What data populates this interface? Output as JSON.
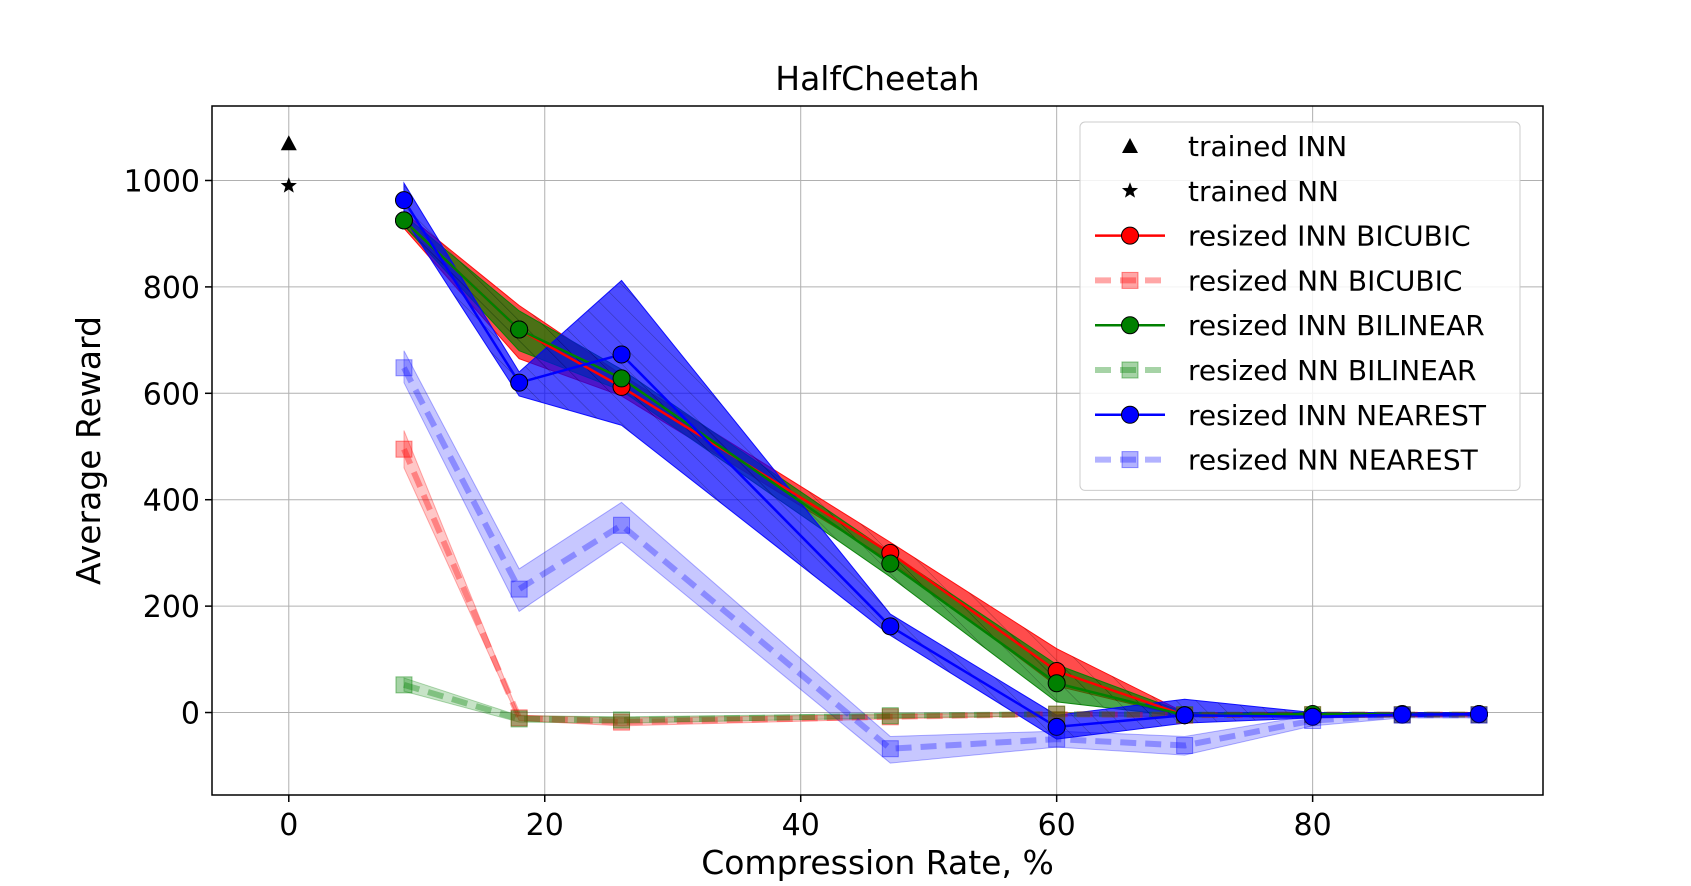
{
  "chart_data": {
    "type": "line",
    "title": "HalfCheetah",
    "xlabel": "Compression Rate, %",
    "ylabel": "Average Reward",
    "xlim": [
      -6,
      98
    ],
    "ylim": [
      -155,
      1140
    ],
    "xticks": [
      0,
      20,
      40,
      60,
      80
    ],
    "yticks": [
      0,
      200,
      400,
      600,
      800,
      1000
    ],
    "xtick_labels": [
      "0",
      "20",
      "40",
      "60",
      "80"
    ],
    "ytick_labels": [
      "0",
      "200",
      "400",
      "600",
      "800",
      "1000"
    ],
    "grid": true,
    "legend_position": "top-right",
    "x": [
      9,
      18,
      26,
      47,
      60,
      70,
      80,
      87,
      93
    ],
    "reference_points": [
      {
        "name": "trained INN",
        "marker": "triangle",
        "x": 0,
        "y": 1070,
        "color": "#000000"
      },
      {
        "name": "trained NN",
        "marker": "star",
        "x": 0,
        "y": 990,
        "color": "#000000"
      }
    ],
    "series": [
      {
        "name": "resized INN BICUBIC",
        "color": "#ff0000",
        "style": "solid",
        "marker": "circle",
        "alpha": 1.0,
        "hatch": true,
        "values": [
          925,
          720,
          612,
          300,
          78,
          -5,
          -3,
          -3,
          -3
        ],
        "lower": [
          910,
          665,
          595,
          285,
          50,
          -8,
          -6,
          -5,
          -5
        ],
        "upper": [
          940,
          765,
          635,
          320,
          120,
          0,
          0,
          0,
          0
        ]
      },
      {
        "name": "resized NN BICUBIC",
        "color": "#ff0000",
        "style": "dashed",
        "marker": "square",
        "alpha": 0.35,
        "hatch": false,
        "values": [
          495,
          -10,
          -18,
          -8,
          -3,
          -5,
          -4,
          -4,
          -4
        ],
        "lower": [
          460,
          -15,
          -25,
          -12,
          -6,
          -8,
          -7,
          -7,
          -7
        ],
        "upper": [
          530,
          -5,
          -10,
          -4,
          0,
          -2,
          -1,
          -1,
          -1
        ]
      },
      {
        "name": "resized INN BILINEAR",
        "color": "#008000",
        "style": "solid",
        "marker": "circle",
        "alpha": 1.0,
        "hatch": true,
        "values": [
          925,
          720,
          628,
          280,
          55,
          -5,
          -3,
          -3,
          -3
        ],
        "lower": [
          915,
          680,
          605,
          255,
          20,
          -8,
          -6,
          -5,
          -5
        ],
        "upper": [
          935,
          755,
          645,
          300,
          90,
          0,
          0,
          0,
          0
        ]
      },
      {
        "name": "resized NN BILINEAR",
        "color": "#008000",
        "style": "dashed",
        "marker": "square",
        "alpha": 0.35,
        "hatch": false,
        "values": [
          52,
          -12,
          -14,
          -6,
          -3,
          -4,
          -4,
          -4,
          -4
        ],
        "lower": [
          40,
          -18,
          -20,
          -10,
          -6,
          -7,
          -7,
          -7,
          -7
        ],
        "upper": [
          65,
          -6,
          -8,
          -2,
          0,
          -1,
          -1,
          -1,
          -1
        ]
      },
      {
        "name": "resized INN NEAREST",
        "color": "#0000ff",
        "style": "solid",
        "marker": "circle",
        "alpha": 1.0,
        "hatch": true,
        "values": [
          963,
          620,
          673,
          162,
          -27,
          -5,
          -8,
          -4,
          -3
        ],
        "lower": [
          930,
          595,
          540,
          145,
          -50,
          -20,
          -10,
          -8,
          -6
        ],
        "upper": [
          995,
          640,
          812,
          185,
          -5,
          25,
          0,
          0,
          0
        ]
      },
      {
        "name": "resized NN NEAREST",
        "color": "#0000ff",
        "style": "dashed",
        "marker": "square",
        "alpha": 0.3,
        "hatch": false,
        "values": [
          648,
          232,
          352,
          -68,
          -50,
          -62,
          -15,
          -5,
          -5
        ],
        "lower": [
          620,
          190,
          320,
          -95,
          -65,
          -80,
          -25,
          -10,
          -10
        ],
        "upper": [
          680,
          270,
          395,
          -45,
          -35,
          -45,
          -5,
          0,
          0
        ]
      }
    ]
  }
}
